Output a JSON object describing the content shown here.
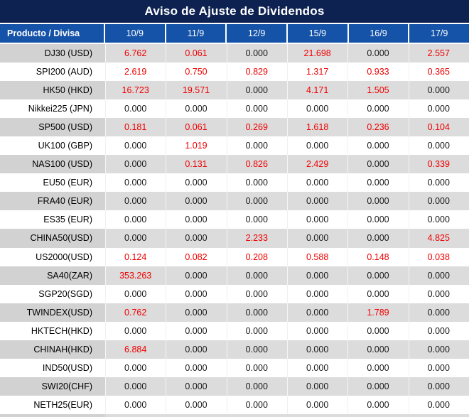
{
  "title": "Aviso de Ajuste de Dividendos",
  "columns": [
    "Producto / Divisa",
    "10/9",
    "11/9",
    "12/9",
    "15/9",
    "16/9",
    "17/9"
  ],
  "rows": [
    {
      "product": "DJ30 (USD)",
      "values": [
        "6.762",
        "0.061",
        "0.000",
        "21.698",
        "0.000",
        "2.557"
      ],
      "red": [
        true,
        true,
        false,
        true,
        false,
        true
      ]
    },
    {
      "product": "SPI200 (AUD)",
      "values": [
        "2.619",
        "0.750",
        "0.829",
        "1.317",
        "0.933",
        "0.365"
      ],
      "red": [
        true,
        true,
        true,
        true,
        true,
        true
      ]
    },
    {
      "product": "HK50 (HKD)",
      "values": [
        "16.723",
        "19.571",
        "0.000",
        "4.171",
        "1.505",
        "0.000"
      ],
      "red": [
        true,
        true,
        false,
        true,
        true,
        false
      ]
    },
    {
      "product": "Nikkei225 (JPN)",
      "values": [
        "0.000",
        "0.000",
        "0.000",
        "0.000",
        "0.000",
        "0.000"
      ],
      "red": [
        false,
        false,
        false,
        false,
        false,
        false
      ]
    },
    {
      "product": "SP500 (USD)",
      "values": [
        "0.181",
        "0.061",
        "0.269",
        "1.618",
        "0.236",
        "0.104"
      ],
      "red": [
        true,
        true,
        true,
        true,
        true,
        true
      ]
    },
    {
      "product": "UK100 (GBP)",
      "values": [
        "0.000",
        "1.019",
        "0.000",
        "0.000",
        "0.000",
        "0.000"
      ],
      "red": [
        false,
        true,
        false,
        false,
        false,
        false
      ]
    },
    {
      "product": "NAS100 (USD)",
      "values": [
        "0.000",
        "0.131",
        "0.826",
        "2.429",
        "0.000",
        "0.339"
      ],
      "red": [
        false,
        true,
        true,
        true,
        false,
        true
      ]
    },
    {
      "product": "EU50 (EUR)",
      "values": [
        "0.000",
        "0.000",
        "0.000",
        "0.000",
        "0.000",
        "0.000"
      ],
      "red": [
        false,
        false,
        false,
        false,
        false,
        false
      ]
    },
    {
      "product": "FRA40 (EUR)",
      "values": [
        "0.000",
        "0.000",
        "0.000",
        "0.000",
        "0.000",
        "0.000"
      ],
      "red": [
        false,
        false,
        false,
        false,
        false,
        false
      ]
    },
    {
      "product": "ES35 (EUR)",
      "values": [
        "0.000",
        "0.000",
        "0.000",
        "0.000",
        "0.000",
        "0.000"
      ],
      "red": [
        false,
        false,
        false,
        false,
        false,
        false
      ]
    },
    {
      "product": "CHINA50(USD)",
      "values": [
        "0.000",
        "0.000",
        "2.233",
        "0.000",
        "0.000",
        "4.825"
      ],
      "red": [
        false,
        false,
        true,
        false,
        false,
        true
      ]
    },
    {
      "product": "US2000(USD)",
      "values": [
        "0.124",
        "0.082",
        "0.208",
        "0.588",
        "0.148",
        "0.038"
      ],
      "red": [
        true,
        true,
        true,
        true,
        true,
        true
      ]
    },
    {
      "product": "SA40(ZAR)",
      "values": [
        "353.263",
        "0.000",
        "0.000",
        "0.000",
        "0.000",
        "0.000"
      ],
      "red": [
        true,
        false,
        false,
        false,
        false,
        false
      ]
    },
    {
      "product": "SGP20(SGD)",
      "values": [
        "0.000",
        "0.000",
        "0.000",
        "0.000",
        "0.000",
        "0.000"
      ],
      "red": [
        false,
        false,
        false,
        false,
        false,
        false
      ]
    },
    {
      "product": "TWINDEX(USD)",
      "values": [
        "0.762",
        "0.000",
        "0.000",
        "0.000",
        "1.789",
        "0.000"
      ],
      "red": [
        true,
        false,
        false,
        false,
        true,
        false
      ]
    },
    {
      "product": "HKTECH(HKD)",
      "values": [
        "0.000",
        "0.000",
        "0.000",
        "0.000",
        "0.000",
        "0.000"
      ],
      "red": [
        false,
        false,
        false,
        false,
        false,
        false
      ]
    },
    {
      "product": "CHINAH(HKD)",
      "values": [
        "6.884",
        "0.000",
        "0.000",
        "0.000",
        "0.000",
        "0.000"
      ],
      "red": [
        true,
        false,
        false,
        false,
        false,
        false
      ]
    },
    {
      "product": "IND50(USD)",
      "values": [
        "0.000",
        "0.000",
        "0.000",
        "0.000",
        "0.000",
        "0.000"
      ],
      "red": [
        false,
        false,
        false,
        false,
        false,
        false
      ]
    },
    {
      "product": "SWI20(CHF)",
      "values": [
        "0.000",
        "0.000",
        "0.000",
        "0.000",
        "0.000",
        "0.000"
      ],
      "red": [
        false,
        false,
        false,
        false,
        false,
        false
      ]
    },
    {
      "product": "NETH25(EUR)",
      "values": [
        "0.000",
        "0.000",
        "0.000",
        "0.000",
        "0.000",
        "0.000"
      ],
      "red": [
        false,
        false,
        false,
        false,
        false,
        false
      ]
    }
  ],
  "colors": {
    "title_bg": "#0d2251",
    "header_bg": "#1553a8",
    "header_text": "#ffffff",
    "row_stripe_bg": "#dcdcdc",
    "row_stripe_product_bg": "#d2d2d2",
    "value_highlight": "#f00000",
    "value_normal": "#1a1a1a"
  }
}
